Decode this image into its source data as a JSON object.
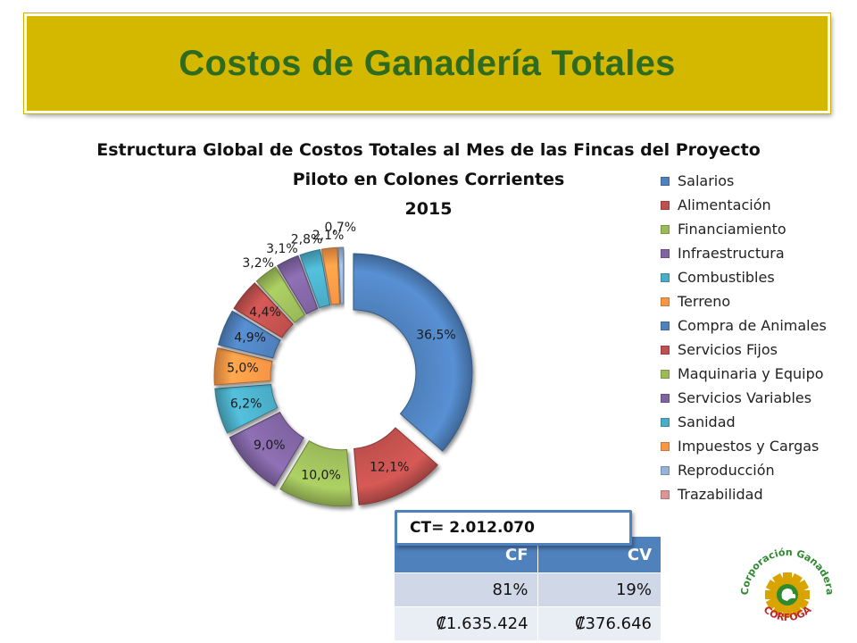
{
  "slide_title": "Costos de Ganadería Totales",
  "chart_data": {
    "type": "pie",
    "title_lines": [
      "Estructura Global de Costos Totales al Mes de las Fincas del Proyecto",
      "Piloto en Colones Corrientes",
      "2015"
    ],
    "categories": [
      "Salarios",
      "Alimentación",
      "Financiamiento",
      "Infraestructura",
      "Combustibles",
      "Terreno",
      "Compra de Animales",
      "Servicios Fijos",
      "Maquinaria y Equipo",
      "Servicios Variables",
      "Sanidad",
      "Impuestos y Cargas",
      "Reproducción",
      "Trazabilidad"
    ],
    "values": [
      36.5,
      12.1,
      10.0,
      9.0,
      6.2,
      5.0,
      4.9,
      4.4,
      3.2,
      3.1,
      2.8,
      2.1,
      0.7,
      0.0
    ],
    "data_labels": [
      "36,5%",
      "12,1%",
      "10,0%",
      "9,0%",
      "6,2%",
      "5,0%",
      "4,9%",
      "4,4%",
      "3,2%",
      "3,1%",
      "2,8%",
      "2,1%",
      "0,7%",
      ""
    ],
    "colors": [
      "#4f81bd",
      "#c0504d",
      "#9bbb59",
      "#8064a2",
      "#4bacc6",
      "#f79646",
      "#4f81bd",
      "#c0504d",
      "#9bbb59",
      "#8064a2",
      "#4bacc6",
      "#f79646",
      "#95b3d7",
      "#d99694"
    ],
    "legend_position": "right",
    "style": "exploded doughnut"
  },
  "ct_label": "CT= 2.012.070",
  "summary_table": {
    "headers": [
      "CF",
      "CV"
    ],
    "rows": [
      [
        "81%",
        "19%"
      ],
      [
        "₡1.635.424",
        "₡376.646"
      ]
    ]
  },
  "logo": {
    "text_top": "Corporación Ganadera",
    "text_bottom": "CORFOGA",
    "colors": {
      "green": "#2f8a2f",
      "red": "#c0262c",
      "gold": "#d9a400"
    }
  }
}
